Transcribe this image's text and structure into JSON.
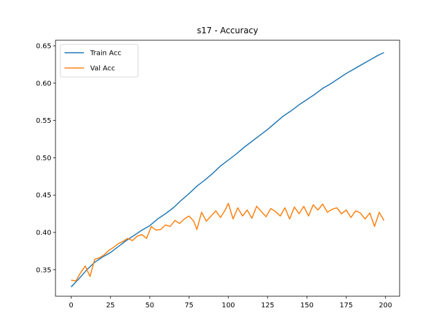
{
  "chart_data": {
    "type": "line",
    "title": "s17 - Accuracy",
    "xlabel": "",
    "ylabel": "",
    "xlim": [
      -9.95,
      208.95
    ],
    "ylim": [
      0.3145,
      0.6575
    ],
    "xticks": [
      0,
      25,
      50,
      75,
      100,
      125,
      150,
      175,
      200
    ],
    "yticks": [
      0.35,
      0.4,
      0.45,
      0.5,
      0.55,
      0.6,
      0.65
    ],
    "ytick_labels": [
      "0.35",
      "0.40",
      "0.45",
      "0.50",
      "0.55",
      "0.60",
      "0.65"
    ],
    "grid": false,
    "legend_position": "top-left",
    "series": [
      {
        "name": "Train Acc",
        "color": "#1f77b4",
        "x": [
          0,
          5,
          10,
          15,
          20,
          25,
          30,
          35,
          40,
          45,
          50,
          55,
          60,
          65,
          70,
          75,
          80,
          85,
          90,
          95,
          100,
          105,
          110,
          115,
          120,
          125,
          130,
          135,
          140,
          145,
          150,
          155,
          160,
          165,
          170,
          175,
          180,
          185,
          190,
          195,
          199
        ],
        "y": [
          0.327,
          0.338,
          0.35,
          0.36,
          0.367,
          0.373,
          0.381,
          0.389,
          0.396,
          0.403,
          0.409,
          0.418,
          0.425,
          0.433,
          0.443,
          0.452,
          0.462,
          0.47,
          0.479,
          0.489,
          0.497,
          0.505,
          0.514,
          0.522,
          0.53,
          0.538,
          0.547,
          0.556,
          0.563,
          0.571,
          0.578,
          0.585,
          0.593,
          0.599,
          0.606,
          0.613,
          0.619,
          0.625,
          0.631,
          0.637,
          0.641
        ]
      },
      {
        "name": "Val Acc",
        "color": "#ff7f0e",
        "x": [
          0,
          3,
          6,
          9,
          12,
          15,
          18,
          21,
          24,
          27,
          30,
          33,
          36,
          39,
          42,
          45,
          48,
          51,
          54,
          57,
          60,
          63,
          66,
          69,
          72,
          75,
          78,
          80,
          83,
          86,
          89,
          92,
          95,
          98,
          100,
          103,
          106,
          109,
          112,
          115,
          118,
          121,
          124,
          127,
          130,
          133,
          136,
          139,
          142,
          145,
          148,
          151,
          154,
          157,
          160,
          163,
          166,
          169,
          172,
          175,
          178,
          181,
          184,
          187,
          190,
          193,
          196,
          199
        ],
        "y": [
          0.336,
          0.335,
          0.346,
          0.355,
          0.341,
          0.364,
          0.366,
          0.37,
          0.376,
          0.38,
          0.385,
          0.388,
          0.392,
          0.389,
          0.395,
          0.397,
          0.392,
          0.408,
          0.403,
          0.404,
          0.41,
          0.408,
          0.416,
          0.412,
          0.418,
          0.422,
          0.415,
          0.404,
          0.427,
          0.415,
          0.422,
          0.429,
          0.42,
          0.43,
          0.439,
          0.418,
          0.433,
          0.422,
          0.43,
          0.419,
          0.435,
          0.428,
          0.421,
          0.432,
          0.428,
          0.422,
          0.433,
          0.418,
          0.434,
          0.425,
          0.435,
          0.422,
          0.437,
          0.43,
          0.438,
          0.427,
          0.431,
          0.433,
          0.425,
          0.43,
          0.42,
          0.429,
          0.426,
          0.418,
          0.426,
          0.408,
          0.427,
          0.416
        ]
      }
    ]
  }
}
